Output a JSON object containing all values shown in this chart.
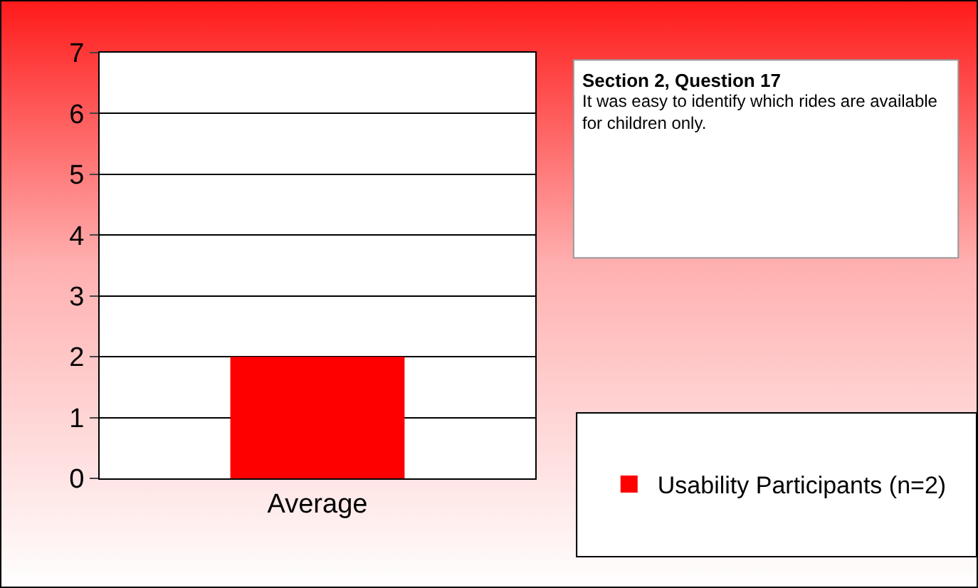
{
  "chart_data": {
    "type": "bar",
    "title": "Section 2, Question 17",
    "subtitle": "It was easy to identify which rides are available\nfor children only.",
    "categories": [
      "Average"
    ],
    "series": [
      {
        "name": "Usability Participants (n=2)",
        "color": "#ff0000",
        "values": [
          2
        ]
      }
    ],
    "ylim": [
      0,
      7
    ],
    "yticks": [
      0,
      1,
      2,
      3,
      4,
      5,
      6,
      7
    ],
    "grid": "y",
    "legend": "right"
  }
}
